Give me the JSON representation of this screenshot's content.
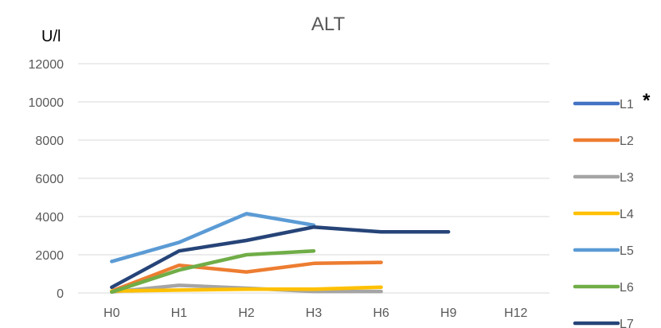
{
  "chart_data": {
    "type": "line",
    "title": "ALT",
    "ylabel": "U/l",
    "xlabel": "",
    "categories": [
      "H0",
      "H1",
      "H2",
      "H3",
      "H6",
      "H9",
      "H12"
    ],
    "ylim": [
      0,
      12000
    ],
    "yticks": [
      0,
      2000,
      4000,
      6000,
      8000,
      10000,
      12000
    ],
    "ytick_labels": [
      "0",
      "2000",
      "4000",
      "6000",
      "8000",
      "10000",
      "12000"
    ],
    "grid": true,
    "legend": "right",
    "annotation": "*",
    "series": [
      {
        "name": "L1",
        "color": "#4472C4",
        "values": [
          null,
          null,
          null,
          null,
          null,
          null,
          null
        ]
      },
      {
        "name": "L2",
        "color": "#ED7D31",
        "values": [
          100,
          1450,
          1100,
          1550,
          1600,
          null,
          null
        ]
      },
      {
        "name": "L3",
        "color": "#A5A5A5",
        "values": [
          50,
          400,
          250,
          80,
          80,
          null,
          null
        ]
      },
      {
        "name": "L4",
        "color": "#FFC000",
        "values": [
          100,
          150,
          200,
          200,
          300,
          null,
          null
        ]
      },
      {
        "name": "L5",
        "color": "#5B9BD5",
        "values": [
          1650,
          2650,
          4150,
          3550,
          null,
          null,
          null
        ]
      },
      {
        "name": "L6",
        "color": "#70AD47",
        "values": [
          50,
          1200,
          2000,
          2200,
          null,
          null,
          null
        ]
      },
      {
        "name": "L7",
        "color": "#264478",
        "values": [
          300,
          2200,
          2750,
          3450,
          3200,
          3200,
          null
        ]
      }
    ]
  }
}
